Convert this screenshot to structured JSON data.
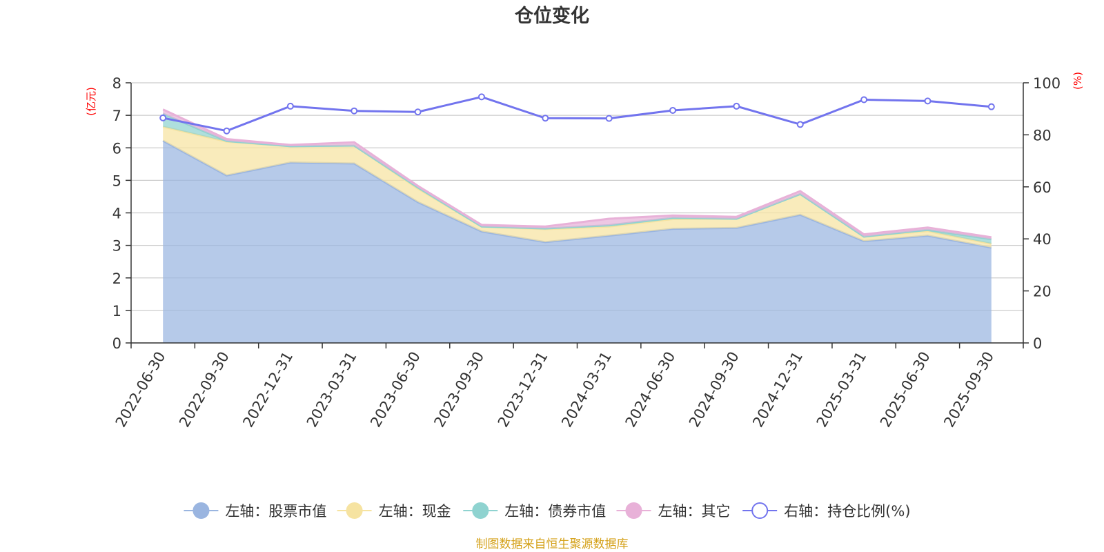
{
  "chart_data": {
    "type": "area",
    "title": "仓位变化",
    "left_unit": "(亿元)",
    "right_unit": "(%)",
    "categories": [
      "2022-06-30",
      "2022-09-30",
      "2022-12-31",
      "2023-03-31",
      "2023-06-30",
      "2023-09-30",
      "2023-12-31",
      "2024-03-31",
      "2024-06-30",
      "2024-09-30",
      "2024-12-31",
      "2025-03-31",
      "2025-06-30",
      "2025-09-30"
    ],
    "left_axis": {
      "min": 0,
      "max": 8,
      "ticks": [
        0,
        1,
        2,
        3,
        4,
        5,
        6,
        7,
        8
      ]
    },
    "right_axis": {
      "min": 0,
      "max": 100,
      "ticks": [
        0,
        20,
        40,
        60,
        80,
        100
      ]
    },
    "stacked_series": [
      {
        "name": "左轴：股票市值",
        "axis": "left",
        "color": "#9ab5e0",
        "values": [
          6.22,
          5.15,
          5.55,
          5.52,
          4.33,
          3.43,
          3.1,
          3.3,
          3.51,
          3.54,
          3.94,
          3.13,
          3.3,
          2.93
        ]
      },
      {
        "name": "左轴：现金",
        "axis": "left",
        "color": "#f6e3a1",
        "values": [
          0.43,
          1.04,
          0.5,
          0.55,
          0.42,
          0.15,
          0.4,
          0.28,
          0.3,
          0.28,
          0.64,
          0.14,
          0.14,
          0.12
        ]
      },
      {
        "name": "左轴：债券市值",
        "axis": "left",
        "color": "#8fd3d0",
        "values": [
          0.4,
          0.02,
          0.0,
          0.0,
          0.03,
          0.0,
          0.02,
          0.04,
          0.04,
          0.0,
          0.0,
          0.0,
          0.04,
          0.14
        ]
      },
      {
        "name": "左轴：其它",
        "axis": "left",
        "color": "#e8b1d8",
        "values": [
          0.13,
          0.06,
          0.04,
          0.1,
          0.05,
          0.05,
          0.06,
          0.2,
          0.07,
          0.06,
          0.09,
          0.07,
          0.07,
          0.06
        ]
      }
    ],
    "line_series": {
      "name": "右轴：持仓比例(%)",
      "axis": "right",
      "color": "#7274ee",
      "values": [
        86.5,
        81.5,
        91.0,
        89.2,
        88.8,
        94.6,
        86.4,
        86.3,
        89.4,
        91.0,
        84.0,
        93.5,
        93.0,
        90.8
      ]
    },
    "legend_position": "bottom",
    "grid": true
  },
  "source": "制图数据来自恒生聚源数据库",
  "colors": {
    "source": "#d4a017",
    "axis": "#333333",
    "grid": "#cccccc",
    "unit": "#ff0000"
  }
}
